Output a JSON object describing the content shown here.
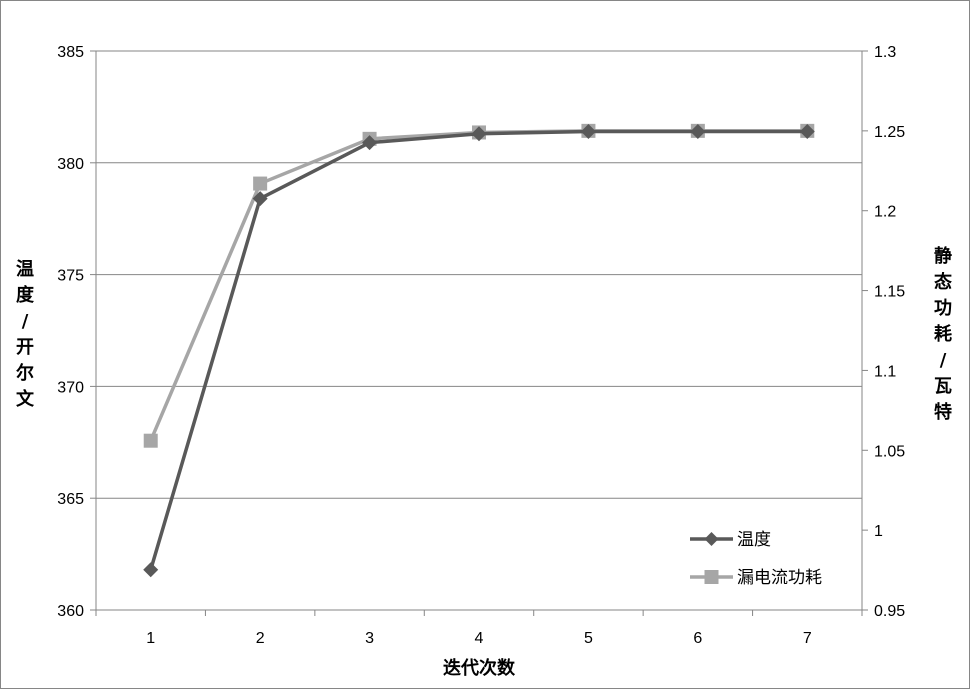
{
  "chart_data": {
    "type": "line",
    "categories": [
      "1",
      "2",
      "3",
      "4",
      "5",
      "6",
      "7"
    ],
    "xlabel": "迭代次数",
    "ylabel_left": "温度/开尔文",
    "ylabel_right": "静态功耗/瓦特",
    "ylim_left": [
      360,
      385
    ],
    "ylim_right": [
      0.95,
      1.3
    ],
    "yticks_left": [
      "360",
      "365",
      "370",
      "375",
      "380",
      "385"
    ],
    "yticks_right": [
      "0.95",
      "1",
      "1.05",
      "1.1",
      "1.15",
      "1.2",
      "1.25",
      "1.3"
    ],
    "grid": true,
    "legend_position": "bottom-right",
    "series": [
      {
        "name": "温度",
        "axis": "left",
        "marker": "diamond",
        "color": "#595959",
        "values": [
          361.8,
          378.4,
          380.9,
          381.3,
          381.4,
          381.4,
          381.4
        ]
      },
      {
        "name": "漏电流功耗",
        "axis": "right",
        "marker": "square",
        "color": "#a6a6a6",
        "values": [
          1.056,
          1.217,
          1.245,
          1.249,
          1.25,
          1.25,
          1.25
        ]
      }
    ]
  }
}
